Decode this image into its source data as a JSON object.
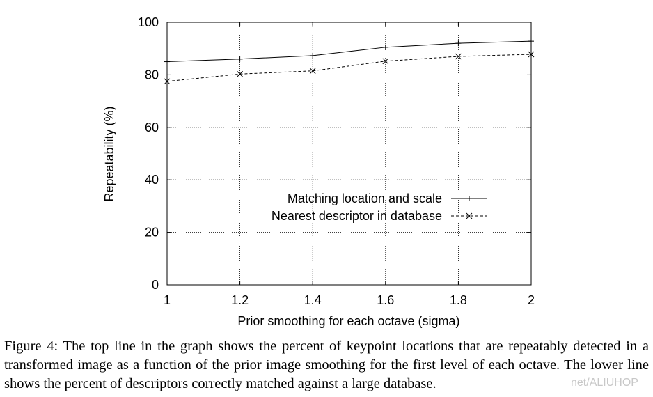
{
  "chart_data": {
    "type": "line",
    "xlabel": "Prior smoothing for each octave (sigma)",
    "ylabel": "Repeatability (%)",
    "xlim": [
      1,
      2
    ],
    "ylim": [
      0,
      100
    ],
    "x_ticks": [
      "1",
      "1.2",
      "1.4",
      "1.6",
      "1.8",
      "2"
    ],
    "y_ticks": [
      "0",
      "20",
      "40",
      "60",
      "80",
      "100"
    ],
    "grid": true,
    "legend_position": "center-right",
    "x": [
      1.0,
      1.2,
      1.4,
      1.6,
      1.8,
      2.0
    ],
    "series": [
      {
        "name": "Matching location and scale",
        "values": [
          85,
          86,
          87.3,
          90.5,
          92,
          92.8
        ],
        "marker": "plus",
        "line": "solid"
      },
      {
        "name": "Nearest descriptor in database",
        "values": [
          77.5,
          80.3,
          81.5,
          85.2,
          87,
          87.8
        ],
        "marker": "cross",
        "line": "dashed"
      }
    ]
  },
  "caption": "Figure 4: The top line in the graph shows the percent of keypoint locations that are repeatably detected in a transformed image as a function of the prior image smoothing for the first level of each octave. The lower line shows the percent of descriptors correctly matched against a large database.",
  "watermark": "net/ALIUHOP"
}
